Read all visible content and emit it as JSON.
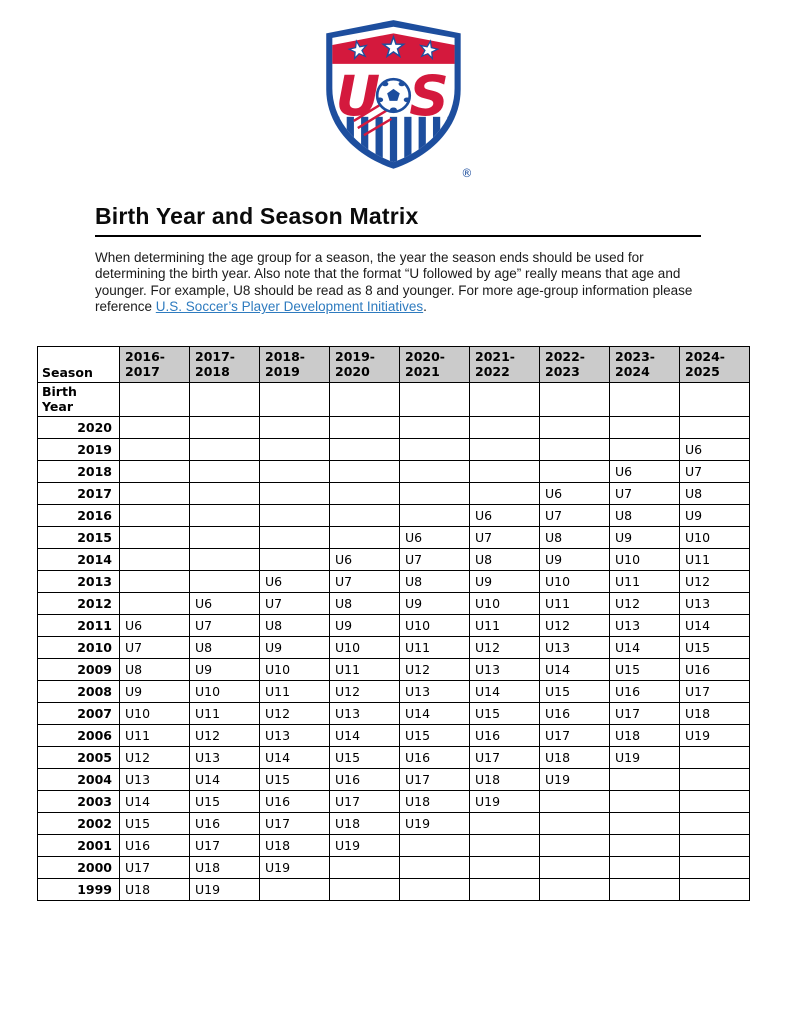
{
  "logo": {
    "registered_mark": "®",
    "colors": {
      "blue": "#1d4e9e",
      "red": "#d4193d",
      "white": "#ffffff"
    }
  },
  "title": "Birth Year and Season Matrix",
  "intro": {
    "text_before_link": "When determining the age group for a season, the year the season ends should be used for determining the birth year. Also note that the format “U followed by age” really means that age and younger. For example, U8 should be read as 8 and younger. For more age-group information please reference ",
    "link_text": "U.S. Soccer’s Player Development Initiatives",
    "text_after_link": ".",
    "link_color": "#2e7bbf"
  },
  "table": {
    "corner_label": "Season",
    "row_axis_label": "Birth Year",
    "header_bg": "#cbcbcb",
    "season_columns": [
      "2016-2017",
      "2017-2018",
      "2018-2019",
      "2019-2020",
      "2020-2021",
      "2021-2022",
      "2022-2023",
      "2023-2024",
      "2024-2025"
    ],
    "rows": [
      {
        "birth_year": "2020",
        "ages": [
          "",
          "",
          "",
          "",
          "",
          "",
          "",
          "",
          ""
        ]
      },
      {
        "birth_year": "2019",
        "ages": [
          "",
          "",
          "",
          "",
          "",
          "",
          "",
          "",
          "U6"
        ]
      },
      {
        "birth_year": "2018",
        "ages": [
          "",
          "",
          "",
          "",
          "",
          "",
          "",
          "U6",
          "U7"
        ]
      },
      {
        "birth_year": "2017",
        "ages": [
          "",
          "",
          "",
          "",
          "",
          "",
          "U6",
          "U7",
          "U8"
        ]
      },
      {
        "birth_year": "2016",
        "ages": [
          "",
          "",
          "",
          "",
          "",
          "U6",
          "U7",
          "U8",
          "U9"
        ]
      },
      {
        "birth_year": "2015",
        "ages": [
          "",
          "",
          "",
          "",
          "U6",
          "U7",
          "U8",
          "U9",
          "U10"
        ]
      },
      {
        "birth_year": "2014",
        "ages": [
          "",
          "",
          "",
          "U6",
          "U7",
          "U8",
          "U9",
          "U10",
          "U11"
        ]
      },
      {
        "birth_year": "2013",
        "ages": [
          "",
          "",
          "U6",
          "U7",
          "U8",
          "U9",
          "U10",
          "U11",
          "U12"
        ]
      },
      {
        "birth_year": "2012",
        "ages": [
          "",
          "U6",
          "U7",
          "U8",
          "U9",
          "U10",
          "U11",
          "U12",
          "U13"
        ]
      },
      {
        "birth_year": "2011",
        "ages": [
          "U6",
          "U7",
          "U8",
          "U9",
          "U10",
          "U11",
          "U12",
          "U13",
          "U14"
        ]
      },
      {
        "birth_year": "2010",
        "ages": [
          "U7",
          "U8",
          "U9",
          "U10",
          "U11",
          "U12",
          "U13",
          "U14",
          "U15"
        ]
      },
      {
        "birth_year": "2009",
        "ages": [
          "U8",
          "U9",
          "U10",
          "U11",
          "U12",
          "U13",
          "U14",
          "U15",
          "U16"
        ]
      },
      {
        "birth_year": "2008",
        "ages": [
          "U9",
          "U10",
          "U11",
          "U12",
          "U13",
          "U14",
          "U15",
          "U16",
          "U17"
        ]
      },
      {
        "birth_year": "2007",
        "ages": [
          "U10",
          "U11",
          "U12",
          "U13",
          "U14",
          "U15",
          "U16",
          "U17",
          "U18"
        ]
      },
      {
        "birth_year": "2006",
        "ages": [
          "U11",
          "U12",
          "U13",
          "U14",
          "U15",
          "U16",
          "U17",
          "U18",
          "U19"
        ]
      },
      {
        "birth_year": "2005",
        "ages": [
          "U12",
          "U13",
          "U14",
          "U15",
          "U16",
          "U17",
          "U18",
          "U19",
          ""
        ]
      },
      {
        "birth_year": "2004",
        "ages": [
          "U13",
          "U14",
          "U15",
          "U16",
          "U17",
          "U18",
          "U19",
          "",
          ""
        ]
      },
      {
        "birth_year": "2003",
        "ages": [
          "U14",
          "U15",
          "U16",
          "U17",
          "U18",
          "U19",
          "",
          "",
          ""
        ]
      },
      {
        "birth_year": "2002",
        "ages": [
          "U15",
          "U16",
          "U17",
          "U18",
          "U19",
          "",
          "",
          "",
          ""
        ]
      },
      {
        "birth_year": "2001",
        "ages": [
          "U16",
          "U17",
          "U18",
          "U19",
          "",
          "",
          "",
          "",
          ""
        ]
      },
      {
        "birth_year": "2000",
        "ages": [
          "U17",
          "U18",
          "U19",
          "",
          "",
          "",
          "",
          "",
          ""
        ]
      },
      {
        "birth_year": "1999",
        "ages": [
          "U18",
          "U19",
          "",
          "",
          "",
          "",
          "",
          "",
          ""
        ]
      }
    ]
  }
}
